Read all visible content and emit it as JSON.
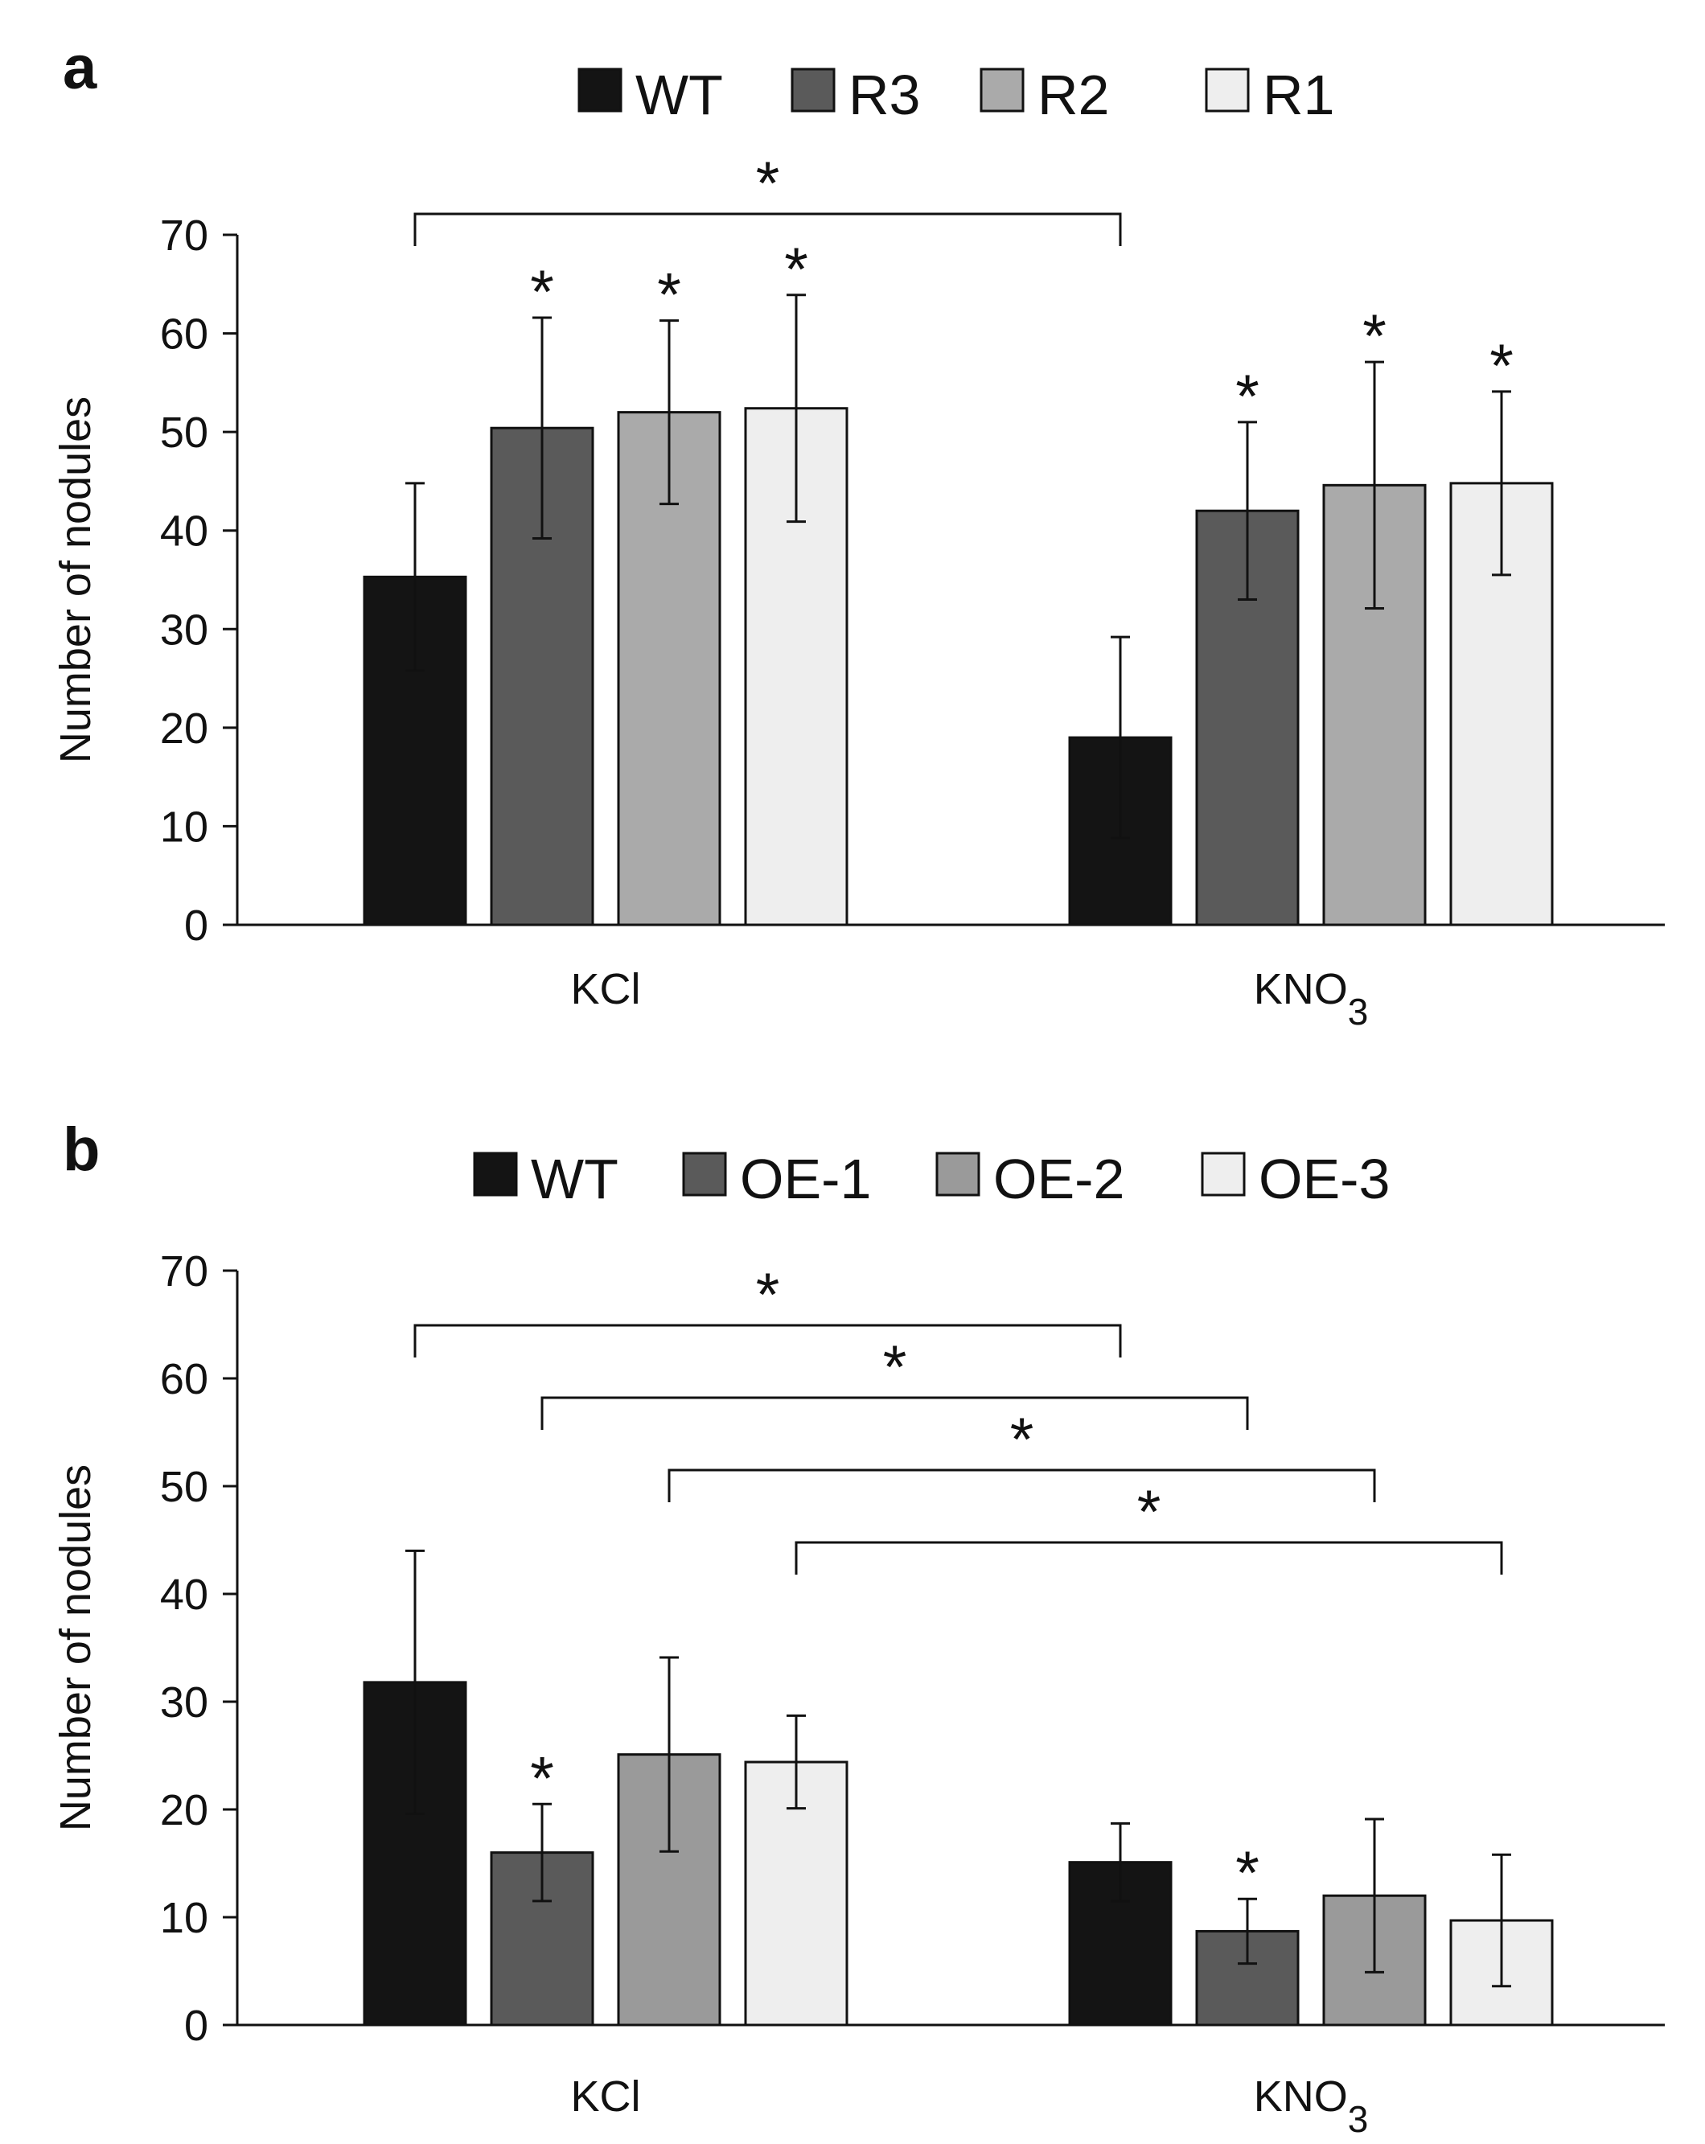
{
  "chart_data": [
    {
      "type": "bar",
      "panel": "a",
      "title": "",
      "xlabel": "",
      "ylabel": "Number of nodules",
      "ylim": [
        0,
        70
      ],
      "yticks": [
        0,
        10,
        20,
        30,
        40,
        50,
        60,
        70
      ],
      "categories": [
        {
          "base": "KCl",
          "sub": ""
        },
        {
          "base": "KNO",
          "sub": "3"
        }
      ],
      "series": [
        {
          "name": "WT",
          "color": "#141414",
          "values": [
            35.3,
            19.0
          ],
          "errors": [
            9.5,
            10.2
          ]
        },
        {
          "name": "R3",
          "color": "#5a5a5a",
          "values": [
            50.4,
            42.0
          ],
          "errors": [
            11.2,
            9.0
          ]
        },
        {
          "name": "R2",
          "color": "#aaaaaa",
          "values": [
            52.0,
            44.6
          ],
          "errors": [
            9.3,
            12.5
          ]
        },
        {
          "name": "R1",
          "color": "#eeeeee",
          "values": [
            52.4,
            44.8
          ],
          "errors": [
            11.5,
            9.3
          ]
        }
      ],
      "bar_stars": [
        [
          false,
          false
        ],
        [
          true,
          true
        ],
        [
          true,
          true
        ],
        [
          true,
          true
        ]
      ],
      "brackets": [
        {
          "from": [
            0,
            0
          ],
          "to": [
            1,
            0
          ],
          "label": "*"
        }
      ],
      "legend_position": "top-center"
    },
    {
      "type": "bar",
      "panel": "b",
      "title": "",
      "xlabel": "",
      "ylabel": "Number of nodules",
      "ylim": [
        0,
        70
      ],
      "yticks": [
        0,
        10,
        20,
        30,
        40,
        50,
        60,
        70
      ],
      "categories": [
        {
          "base": "KCl",
          "sub": ""
        },
        {
          "base": "KNO",
          "sub": "3"
        }
      ],
      "series": [
        {
          "name": "WT",
          "color": "#141414",
          "values": [
            31.8,
            15.1
          ],
          "errors": [
            12.2,
            3.6
          ]
        },
        {
          "name": "OE-1",
          "color": "#5a5a5a",
          "values": [
            16.0,
            8.7
          ],
          "errors": [
            4.5,
            3.0
          ]
        },
        {
          "name": "OE-2",
          "color": "#9a9a9a",
          "values": [
            25.1,
            12.0
          ],
          "errors": [
            9.0,
            7.1
          ]
        },
        {
          "name": "OE-3",
          "color": "#eeeeee",
          "values": [
            24.4,
            9.7
          ],
          "errors": [
            4.3,
            6.1
          ]
        }
      ],
      "bar_stars": [
        [
          false,
          false
        ],
        [
          true,
          true
        ],
        [
          false,
          false
        ],
        [
          false,
          false
        ]
      ],
      "brackets": [
        {
          "from": [
            0,
            0
          ],
          "to": [
            1,
            0
          ],
          "label": "*"
        },
        {
          "from": [
            0,
            1
          ],
          "to": [
            1,
            1
          ],
          "label": "*"
        },
        {
          "from": [
            0,
            2
          ],
          "to": [
            1,
            2
          ],
          "label": "*"
        },
        {
          "from": [
            0,
            3
          ],
          "to": [
            1,
            3
          ],
          "label": "*"
        }
      ],
      "legend_position": "top-center"
    }
  ]
}
